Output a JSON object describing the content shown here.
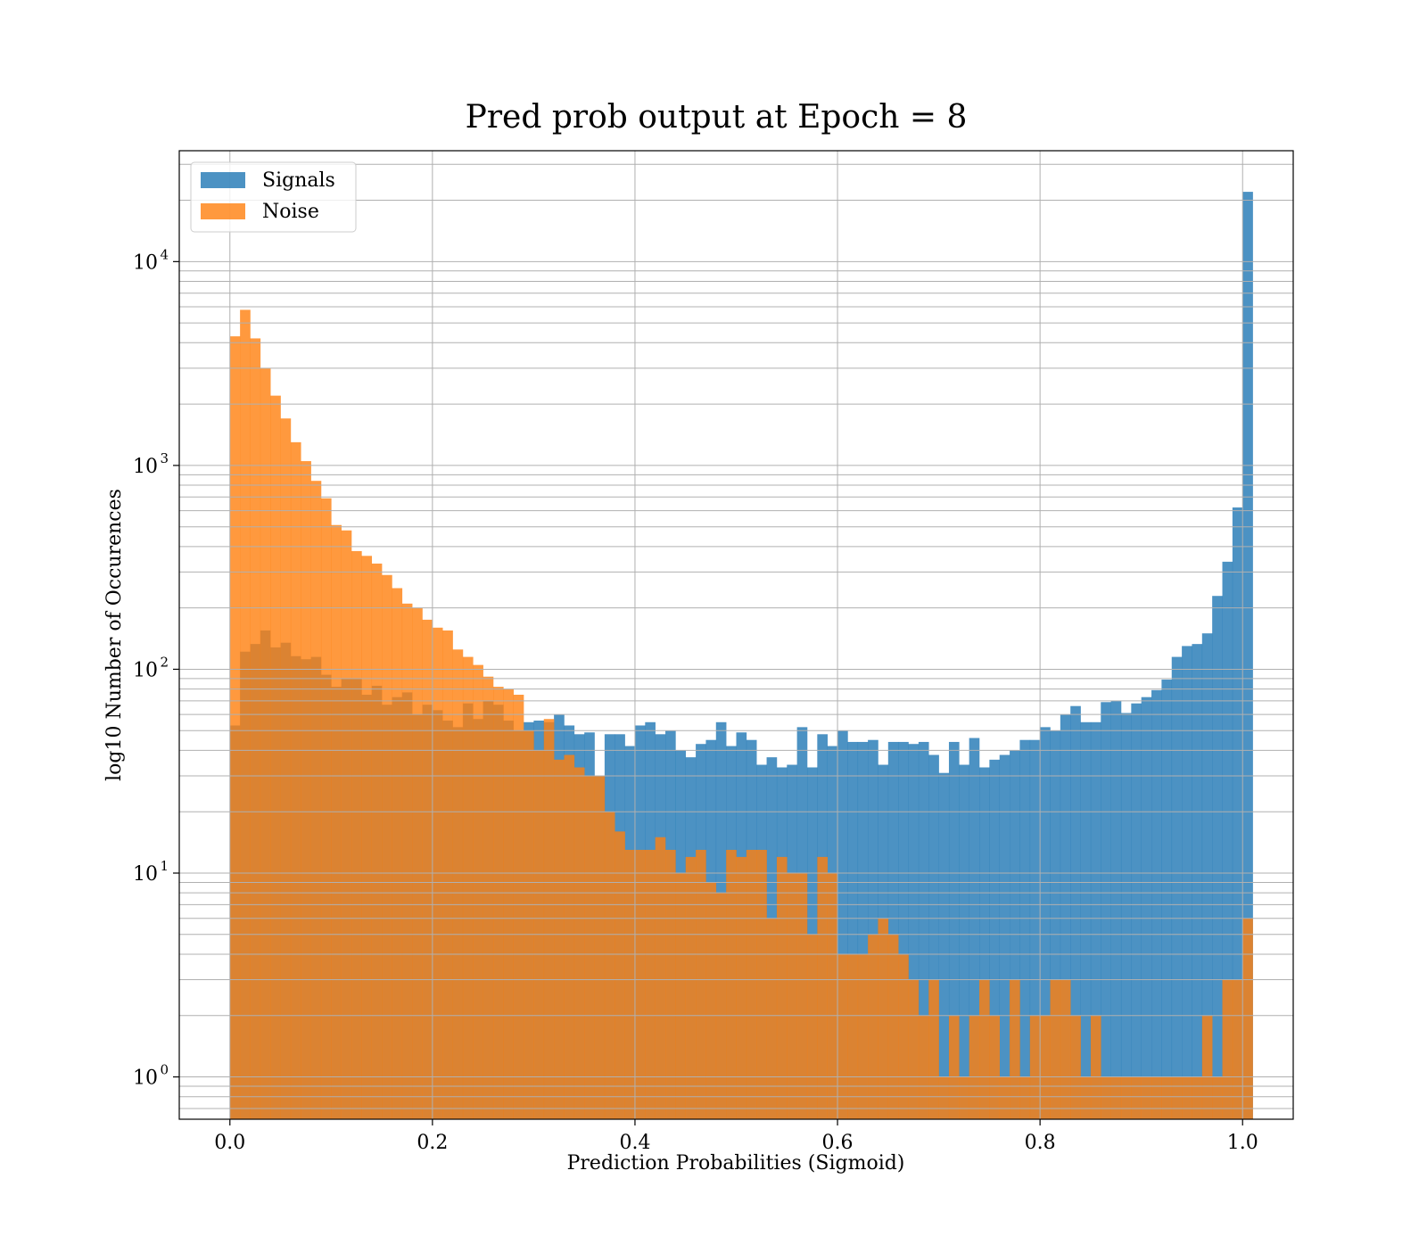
{
  "chart_data": {
    "type": "bar",
    "title": "Pred prob output at Epoch = 8",
    "xlabel": "Prediction Probabilities (Sigmoid)",
    "ylabel": "log10 Number of Occurences",
    "xlim": [
      -0.05,
      1.05
    ],
    "ylim": [
      0.62,
      35000
    ],
    "yscale": "log",
    "grid": true,
    "legend_position": "top-left",
    "x_ticks": [
      "0.0",
      "0.2",
      "0.4",
      "0.6",
      "0.8",
      "1.0"
    ],
    "x_tick_values": [
      0.0,
      0.2,
      0.4,
      0.6,
      0.8,
      1.0
    ],
    "y_ticks": [
      {
        "base": "10",
        "exp": "0",
        "value": 1
      },
      {
        "base": "10",
        "exp": "1",
        "value": 10
      },
      {
        "base": "10",
        "exp": "2",
        "value": 100
      },
      {
        "base": "10",
        "exp": "3",
        "value": 1000
      },
      {
        "base": "10",
        "exp": "4",
        "value": 10000
      }
    ],
    "bin_width": 0.01,
    "bin_start": 0.0,
    "series": [
      {
        "name": "Signals",
        "color": "#1f77b4",
        "opacity": 0.8,
        "values": [
          53,
          122,
          133,
          155,
          128,
          135,
          116,
          112,
          115,
          94,
          82,
          90,
          90,
          75,
          83,
          67,
          73,
          77,
          60,
          67,
          63,
          56,
          52,
          68,
          57,
          70,
          67,
          56,
          50,
          55,
          56,
          55,
          60,
          53,
          48,
          49,
          30,
          48,
          48,
          42,
          53,
          55,
          48,
          50,
          40,
          37,
          43,
          45,
          55,
          42,
          49,
          45,
          34,
          37,
          33,
          34,
          52,
          33,
          48,
          42,
          50,
          44,
          44,
          45,
          34,
          44,
          44,
          43,
          44,
          38,
          31,
          44,
          34,
          46,
          33,
          36,
          38,
          40,
          45,
          45,
          52,
          50,
          60,
          66,
          55,
          55,
          69,
          70,
          61,
          68,
          73,
          79,
          89,
          115,
          130,
          133,
          150,
          229,
          337,
          622,
          22000
        ]
      },
      {
        "name": "Noise",
        "color": "#ff7f0e",
        "opacity": 0.8,
        "values": [
          4300,
          5800,
          4200,
          3000,
          2200,
          1700,
          1300,
          1050,
          840,
          690,
          510,
          480,
          380,
          360,
          330,
          290,
          250,
          210,
          200,
          175,
          160,
          155,
          125,
          115,
          105,
          92,
          82,
          80,
          75,
          50,
          40,
          57,
          36,
          38,
          33,
          30,
          30,
          20,
          16,
          13,
          13,
          13,
          15,
          13,
          10,
          12,
          13,
          9,
          8,
          13,
          12,
          13,
          13,
          6,
          12,
          10,
          10,
          5,
          12,
          10,
          4,
          4,
          4,
          5,
          6,
          5,
          4,
          3,
          2,
          3,
          1,
          2,
          1,
          2,
          3,
          2,
          1,
          3,
          1,
          2,
          2,
          3,
          3,
          2,
          1,
          2,
          1,
          1,
          1,
          1,
          1,
          1,
          1,
          1,
          1,
          1,
          2,
          1,
          3,
          3,
          6
        ]
      }
    ]
  }
}
